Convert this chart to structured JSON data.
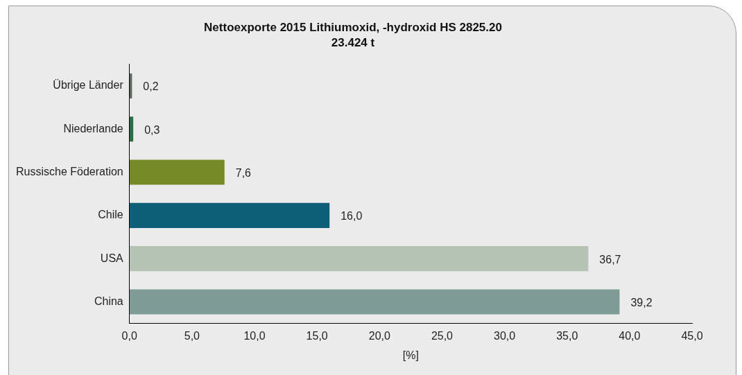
{
  "chart_data": {
    "type": "bar",
    "orientation": "horizontal",
    "title": "Nettoexporte 2015 Lithiumoxid, -hydroxid HS 2825.20",
    "subtitle": "23.424 t",
    "xlabel": "[%]",
    "categories": [
      "Übrige Länder",
      "Niederlande",
      "Russische Föderation",
      "Chile",
      "USA",
      "China"
    ],
    "values": [
      0.2,
      0.3,
      7.6,
      16.0,
      36.7,
      39.2
    ],
    "colors": [
      "#5a6b5e",
      "#2f6b45",
      "#768a28",
      "#0d5f78",
      "#b4c3b4",
      "#7f9b95"
    ],
    "value_labels": [
      "0,2",
      "0,3",
      "7,6",
      "16,0",
      "36,7",
      "39,2"
    ],
    "xlim": [
      0,
      45
    ],
    "xticks": [
      {
        "value": 0,
        "label": "0,0"
      },
      {
        "value": 5,
        "label": "5,0"
      },
      {
        "value": 10,
        "label": "10,0"
      },
      {
        "value": 15,
        "label": "15,0"
      },
      {
        "value": 20,
        "label": "20,0"
      },
      {
        "value": 25,
        "label": "25,0"
      },
      {
        "value": 30,
        "label": "30,0"
      },
      {
        "value": 35,
        "label": "35,0"
      },
      {
        "value": 40,
        "label": "40,0"
      },
      {
        "value": 45,
        "label": "45,0"
      }
    ],
    "grid": false,
    "legend": false
  }
}
